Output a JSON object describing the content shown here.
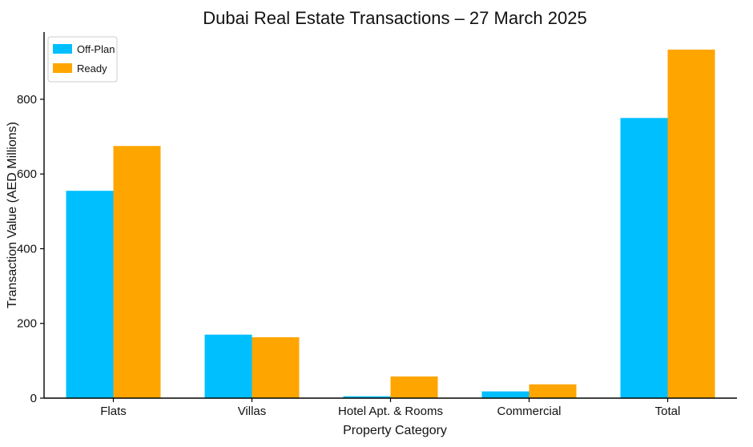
{
  "chart_data": {
    "type": "bar",
    "title": "Dubai Real Estate Transactions – 27 March 2025",
    "xlabel": "Property Category",
    "ylabel": "Transaction Value (AED Millions)",
    "categories": [
      "Flats",
      "Villas",
      "Hotel Apt. & Rooms",
      "Commercial",
      "Total"
    ],
    "series": [
      {
        "name": "Off-Plan",
        "color": "#00BFFF",
        "values": [
          555,
          170,
          5,
          18,
          750
        ]
      },
      {
        "name": "Ready",
        "color": "#FFA500",
        "values": [
          675,
          163,
          58,
          37,
          933
        ]
      }
    ],
    "ylim": [
      0,
      980
    ],
    "yticks": [
      0,
      200,
      400,
      600,
      800
    ],
    "grid": false,
    "legend": "top-left"
  }
}
